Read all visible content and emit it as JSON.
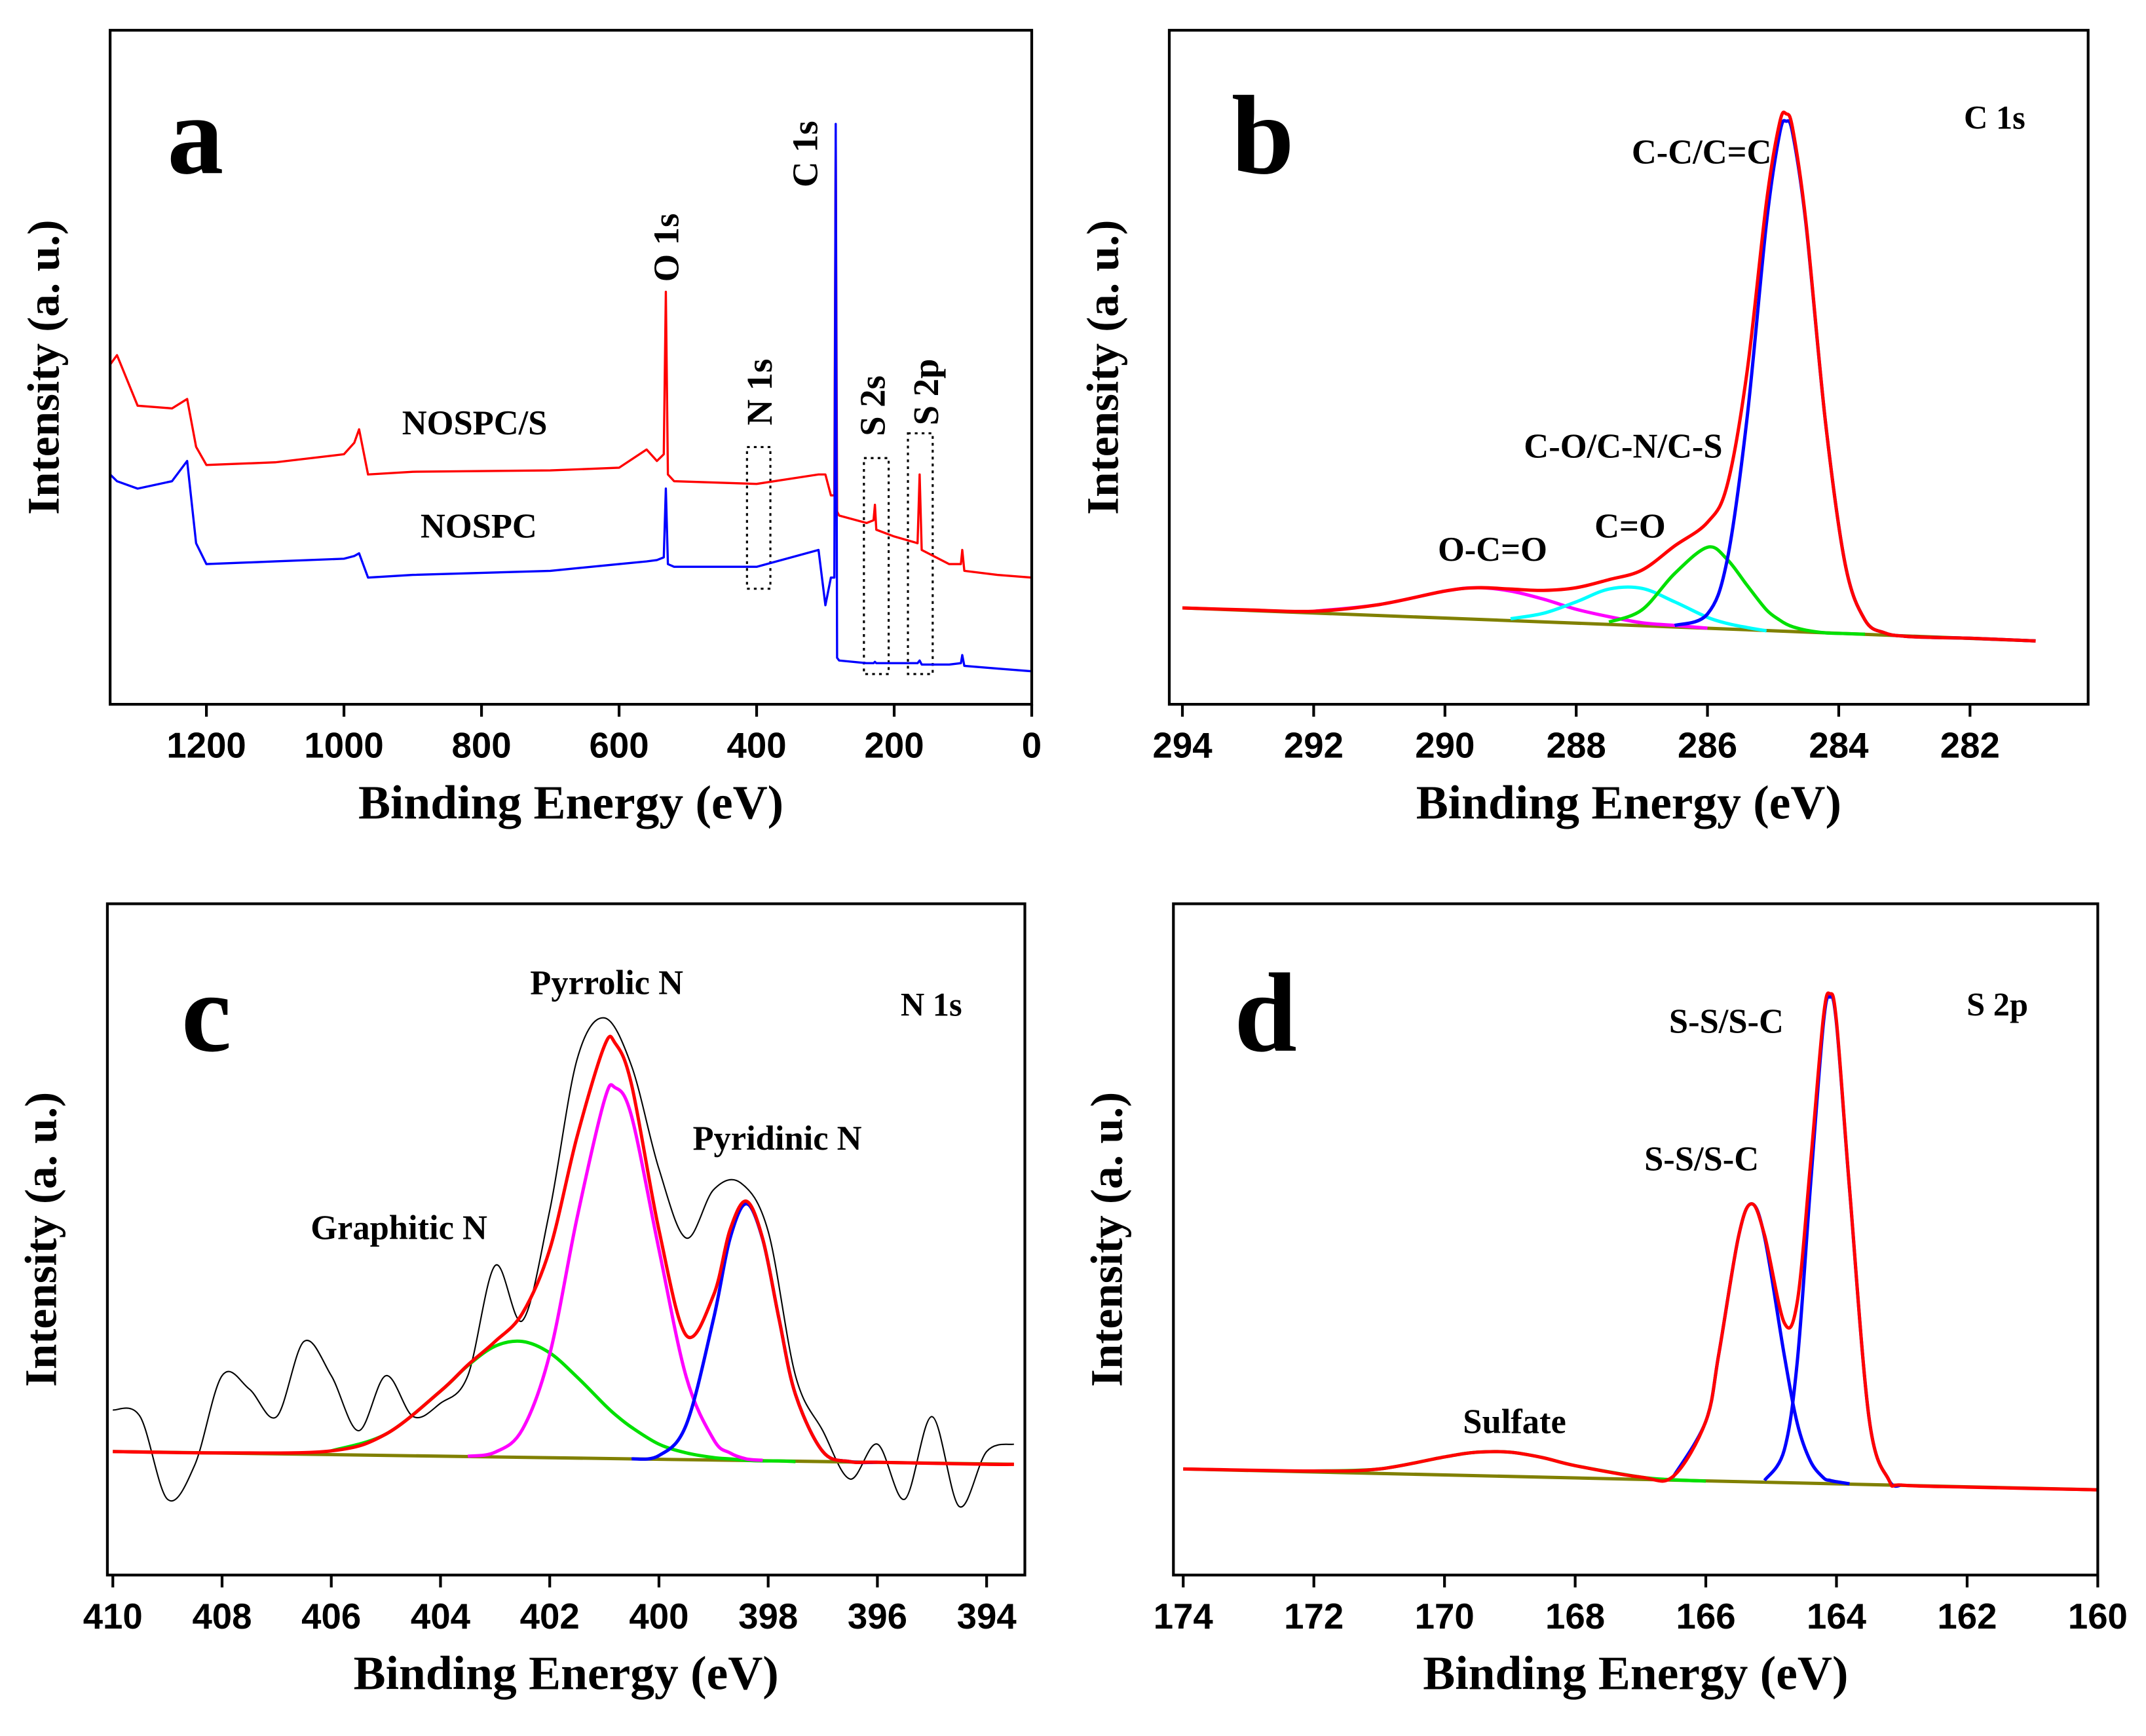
{
  "chart_data": [
    {
      "type": "line",
      "panel": "a",
      "xlabel": "Binding Energy (eV)",
      "ylabel": "Intensity (a. u.)",
      "xlim": [
        1340,
        0
      ],
      "ylim": [
        0,
        100
      ],
      "xticks": [
        1200,
        1000,
        800,
        600,
        400,
        200,
        0
      ],
      "annotations": [
        "O 1s",
        "C 1s",
        "N 1s",
        "S 2s",
        "S 2p"
      ],
      "x": [
        1340,
        1330,
        1300,
        1250,
        1228,
        1215,
        1200,
        1100,
        1000,
        985,
        978,
        965,
        900,
        700,
        600,
        560,
        545,
        535,
        532,
        529,
        520,
        400,
        310,
        300,
        292,
        287,
        285,
        283,
        280,
        240,
        230,
        228,
        226,
        200,
        166,
        163,
        160,
        120,
        103,
        101,
        98,
        50,
        0
      ],
      "series": [
        {
          "name": "NOSPC/S",
          "color": "#ff0000",
          "values": [
            50.4,
            51.8,
            44.3,
            43.9,
            45.3,
            38.2,
            35.5,
            35.9,
            37.1,
            38.8,
            40.8,
            34.1,
            34.5,
            34.7,
            35.1,
            37.8,
            36.1,
            37.1,
            61.2,
            34.1,
            33.1,
            32.7,
            34.1,
            34.1,
            31.0,
            31.0,
            84.5,
            28.6,
            28.0,
            26.9,
            27.3,
            29.6,
            25.9,
            24.9,
            23.9,
            34.1,
            22.9,
            20.8,
            20.8,
            22.9,
            19.8,
            19.2,
            18.8
          ]
        },
        {
          "name": "NOSPC",
          "color": "#0000ff",
          "values": [
            34.1,
            33.1,
            32.0,
            33.1,
            36.1,
            23.9,
            20.8,
            21.2,
            21.6,
            22.0,
            22.4,
            18.8,
            19.2,
            19.8,
            20.8,
            21.2,
            21.4,
            21.8,
            32.0,
            20.8,
            20.4,
            20.4,
            22.9,
            14.7,
            18.8,
            18.8,
            86.1,
            6.9,
            6.5,
            6.1,
            6.1,
            6.3,
            6.1,
            6.1,
            6.1,
            6.5,
            5.9,
            5.9,
            6.1,
            7.3,
            5.7,
            5.3,
            4.9
          ]
        }
      ]
    },
    {
      "type": "line",
      "panel": "b",
      "annotation": "C 1s",
      "xlabel": "Binding Energy (eV)",
      "ylabel": "Intensity (a. u.)",
      "xlim": [
        294.2,
        280.2
      ],
      "ylim": [
        0,
        100
      ],
      "xticks": [
        294,
        292,
        290,
        288,
        286,
        284,
        282
      ],
      "series": [
        {
          "color": "#808000",
          "x": [
            294,
            281
          ],
          "values": [
            14.3,
            9.4
          ]
        },
        {
          "name": "O-C=O",
          "color": "#ff00ff",
          "x": [
            292,
            291,
            290,
            289.5,
            289,
            288.5,
            288,
            287.5,
            287,
            286.5,
            286
          ],
          "values": [
            13.8,
            14.8,
            16.8,
            17.3,
            16.8,
            15.6,
            14.1,
            13.0,
            12.1,
            11.7,
            11.3
          ]
        },
        {
          "name": "C=O",
          "color": "#00ffff",
          "x": [
            289,
            288.5,
            288,
            287.5,
            287,
            286.5,
            286,
            285.7,
            285.4,
            285.1
          ],
          "values": [
            12.7,
            13.5,
            15.2,
            17.1,
            17.2,
            15.2,
            12.9,
            12.0,
            11.4,
            10.9
          ]
        },
        {
          "name": "C-O/C-N/C-S",
          "color": "#00e000",
          "x": [
            287.5,
            287,
            286.5,
            286,
            285.7,
            285.4,
            285.1,
            284.9,
            284.8,
            284.7,
            284.5,
            284.2,
            283.9,
            283.6
          ],
          "values": [
            12.2,
            14.0,
            19.4,
            23.3,
            21.5,
            17.7,
            14.0,
            12.5,
            11.9,
            11.5,
            11.0,
            10.6,
            10.5,
            10.4
          ]
        },
        {
          "name": "C-C/C=C",
          "color": "#0000ff",
          "x": [
            286.5,
            286,
            285.7,
            285.4,
            285.1,
            284.9,
            284.8,
            284.7,
            284.5,
            284.2,
            283.9,
            283.6,
            283.3,
            283,
            282.5,
            282,
            281
          ],
          "values": [
            11.7,
            13.4,
            21.4,
            42.2,
            71.5,
            84.7,
            86.5,
            84.6,
            71.3,
            41.7,
            20.7,
            12.5,
            10.6,
            10.1,
            9.9,
            9.8,
            9.4
          ]
        },
        {
          "color": "#ff0000",
          "x": [
            294,
            293,
            292,
            291,
            290,
            289.5,
            289,
            288.5,
            288,
            287.5,
            287,
            286.5,
            286,
            285.7,
            285.4,
            285.1,
            284.9,
            284.8,
            284.7,
            284.5,
            284.2,
            283.9,
            283.6,
            283.3,
            283,
            282.5,
            282,
            281
          ],
          "values": [
            14.3,
            14.0,
            13.8,
            14.8,
            16.8,
            17.3,
            17.1,
            16.9,
            17.3,
            18.5,
            19.9,
            23.5,
            27.0,
            32.5,
            49.1,
            74.6,
            86.3,
            87.6,
            85.3,
            71.6,
            41.7,
            20.7,
            12.5,
            10.6,
            10.1,
            9.9,
            9.8,
            9.4
          ]
        }
      ]
    },
    {
      "type": "line",
      "panel": "c",
      "annotation": "N 1s",
      "xlabel": "Binding Energy (eV)",
      "ylabel": "Intensity (a. u.)",
      "xlim": [
        410.1,
        393.3
      ],
      "ylim": [
        0,
        100
      ],
      "xticks": [
        410,
        408,
        406,
        404,
        402,
        400,
        398,
        396,
        394
      ],
      "series": [
        {
          "color": "#000000",
          "x": [
            410,
            409.5,
            409,
            408.5,
            408,
            407.5,
            407,
            406.5,
            406,
            405.5,
            405,
            404.5,
            404,
            403.5,
            403,
            402.5,
            402,
            401.5,
            401,
            400.5,
            400,
            399.5,
            399,
            398.5,
            398,
            397.5,
            397,
            396.5,
            396,
            395.5,
            395,
            394.5,
            394,
            393.5
          ],
          "values": [
            24.6,
            23.6,
            11.3,
            16.4,
            29.7,
            27.7,
            23.6,
            34.8,
            29.7,
            21.5,
            29.7,
            23.6,
            25.6,
            29.7,
            46.1,
            37.9,
            54.3,
            76.8,
            83.0,
            75.8,
            60.5,
            50.2,
            57.4,
            58.4,
            51.2,
            29.7,
            21.5,
            14.3,
            19.5,
            11.3,
            23.6,
            10.2,
            18.4,
            19.5
          ]
        },
        {
          "color": "#808000",
          "x": [
            410,
            393.5
          ],
          "values": [
            18.4,
            16.5
          ]
        },
        {
          "name": "Graphitic N",
          "color": "#00e000",
          "x": [
            406,
            405,
            404,
            403.5,
            403,
            402.5,
            402,
            401.5,
            401,
            400.8,
            400.5,
            400,
            399.5,
            399,
            398.7,
            398.4,
            398.1,
            397.8,
            397.5
          ],
          "values": [
            18.5,
            21.0,
            27.4,
            31.2,
            34.1,
            34.8,
            33.1,
            29.5,
            25.4,
            23.9,
            22.0,
            19.5,
            18.2,
            17.5,
            17.3,
            17.1,
            17.0,
            17.0,
            16.9
          ]
        },
        {
          "name": "Pyrrolic N",
          "color": "#ff00ff",
          "x": [
            403.5,
            403,
            402.5,
            402,
            401.5,
            401,
            400.8,
            400.5,
            400,
            399.5,
            399,
            398.7,
            398.4,
            398.1
          ],
          "values": [
            17.7,
            18.3,
            21.7,
            32.9,
            53.2,
            70.7,
            72.6,
            68.3,
            48.5,
            29.5,
            20.2,
            18.2,
            17.3,
            17.1
          ]
        },
        {
          "name": "Pyridinic N",
          "color": "#0000ff",
          "x": [
            400.5,
            400,
            399.5,
            399,
            398.7,
            398.4,
            398.1,
            397.8,
            397.5,
            397,
            396.5,
            396
          ],
          "values": [
            17.3,
            17.8,
            22.4,
            38.2,
            50.1,
            55.3,
            50.0,
            38.1,
            26.9,
            18.4,
            16.9,
            16.8
          ]
        },
        {
          "color": "#ff0000",
          "x": [
            410,
            408,
            406,
            405,
            404,
            403.5,
            403,
            402.5,
            402,
            401.5,
            401,
            400.8,
            400.5,
            400,
            399.5,
            399,
            398.7,
            398.4,
            398.1,
            397.8,
            397.5,
            397,
            396.5,
            396,
            394,
            393.5
          ],
          "values": [
            18.4,
            18.2,
            18.5,
            21.0,
            27.4,
            31.3,
            34.8,
            39.0,
            48.5,
            65.3,
            78.8,
            79.2,
            73.0,
            51.4,
            35.7,
            41.7,
            51.4,
            55.7,
            50.1,
            38.1,
            26.9,
            18.4,
            16.9,
            16.8,
            16.5,
            16.5
          ]
        }
      ]
    },
    {
      "type": "line",
      "panel": "d",
      "annotation": "S 2p",
      "xlabel": "Binding Energy (eV)",
      "ylabel": "Intensity (a. u.)",
      "xlim": [
        174.15,
        160
      ],
      "ylim": [
        0,
        100
      ],
      "xticks": [
        174,
        172,
        170,
        168,
        166,
        164,
        162,
        160
      ],
      "series": [
        {
          "color": "#808000",
          "x": [
            174,
            160
          ],
          "values": [
            15.8,
            12.7
          ]
        },
        {
          "name": "Sulfate",
          "color": "#00e000",
          "x": [
            172,
            171,
            170,
            169.5,
            169,
            168.5,
            168,
            167,
            166.5,
            166
          ],
          "values": [
            15.5,
            15.8,
            17.6,
            18.3,
            18.3,
            17.5,
            16.3,
            14.6,
            14.2,
            14.0
          ]
        },
        {
          "name": "S-S/S-C",
          "color": "#0000ff",
          "x": [
            166.5,
            166,
            165.8,
            165.5,
            165.3,
            165.1,
            164.8,
            164.6,
            164.4,
            164.2,
            164.1,
            164,
            163.8
          ],
          "values": [
            14.6,
            22.9,
            33.0,
            50.4,
            55.3,
            50.3,
            32.8,
            22.6,
            17.0,
            14.5,
            14.1,
            13.9,
            13.6
          ]
        },
        {
          "name": "S-S/S-C",
          "color": "#0000ff",
          "x": [
            165.1,
            164.8,
            164.6,
            164.4,
            164.2,
            164.1,
            164,
            163.8,
            163.5,
            163.2,
            163
          ],
          "values": [
            14.1,
            18.6,
            31.8,
            57.7,
            82.2,
            86.1,
            82.2,
            57.5,
            23.3,
            14.2,
            13.4
          ]
        },
        {
          "color": "#ff0000",
          "x": [
            174,
            172,
            171,
            170,
            169.5,
            169,
            168.5,
            168,
            167,
            166.5,
            166,
            165.8,
            165.5,
            165.3,
            165.1,
            164.8,
            164.6,
            164.4,
            164.2,
            164.1,
            164,
            163.8,
            163.5,
            163.2,
            163,
            162,
            160
          ],
          "values": [
            15.8,
            15.5,
            15.8,
            17.6,
            18.3,
            18.3,
            17.5,
            16.3,
            14.6,
            14.7,
            22.9,
            33.0,
            50.4,
            55.3,
            50.6,
            37.6,
            40.7,
            61.0,
            83.1,
            86.6,
            82.5,
            57.6,
            23.3,
            14.2,
            13.4,
            13.1,
            12.7
          ]
        }
      ]
    }
  ]
}
